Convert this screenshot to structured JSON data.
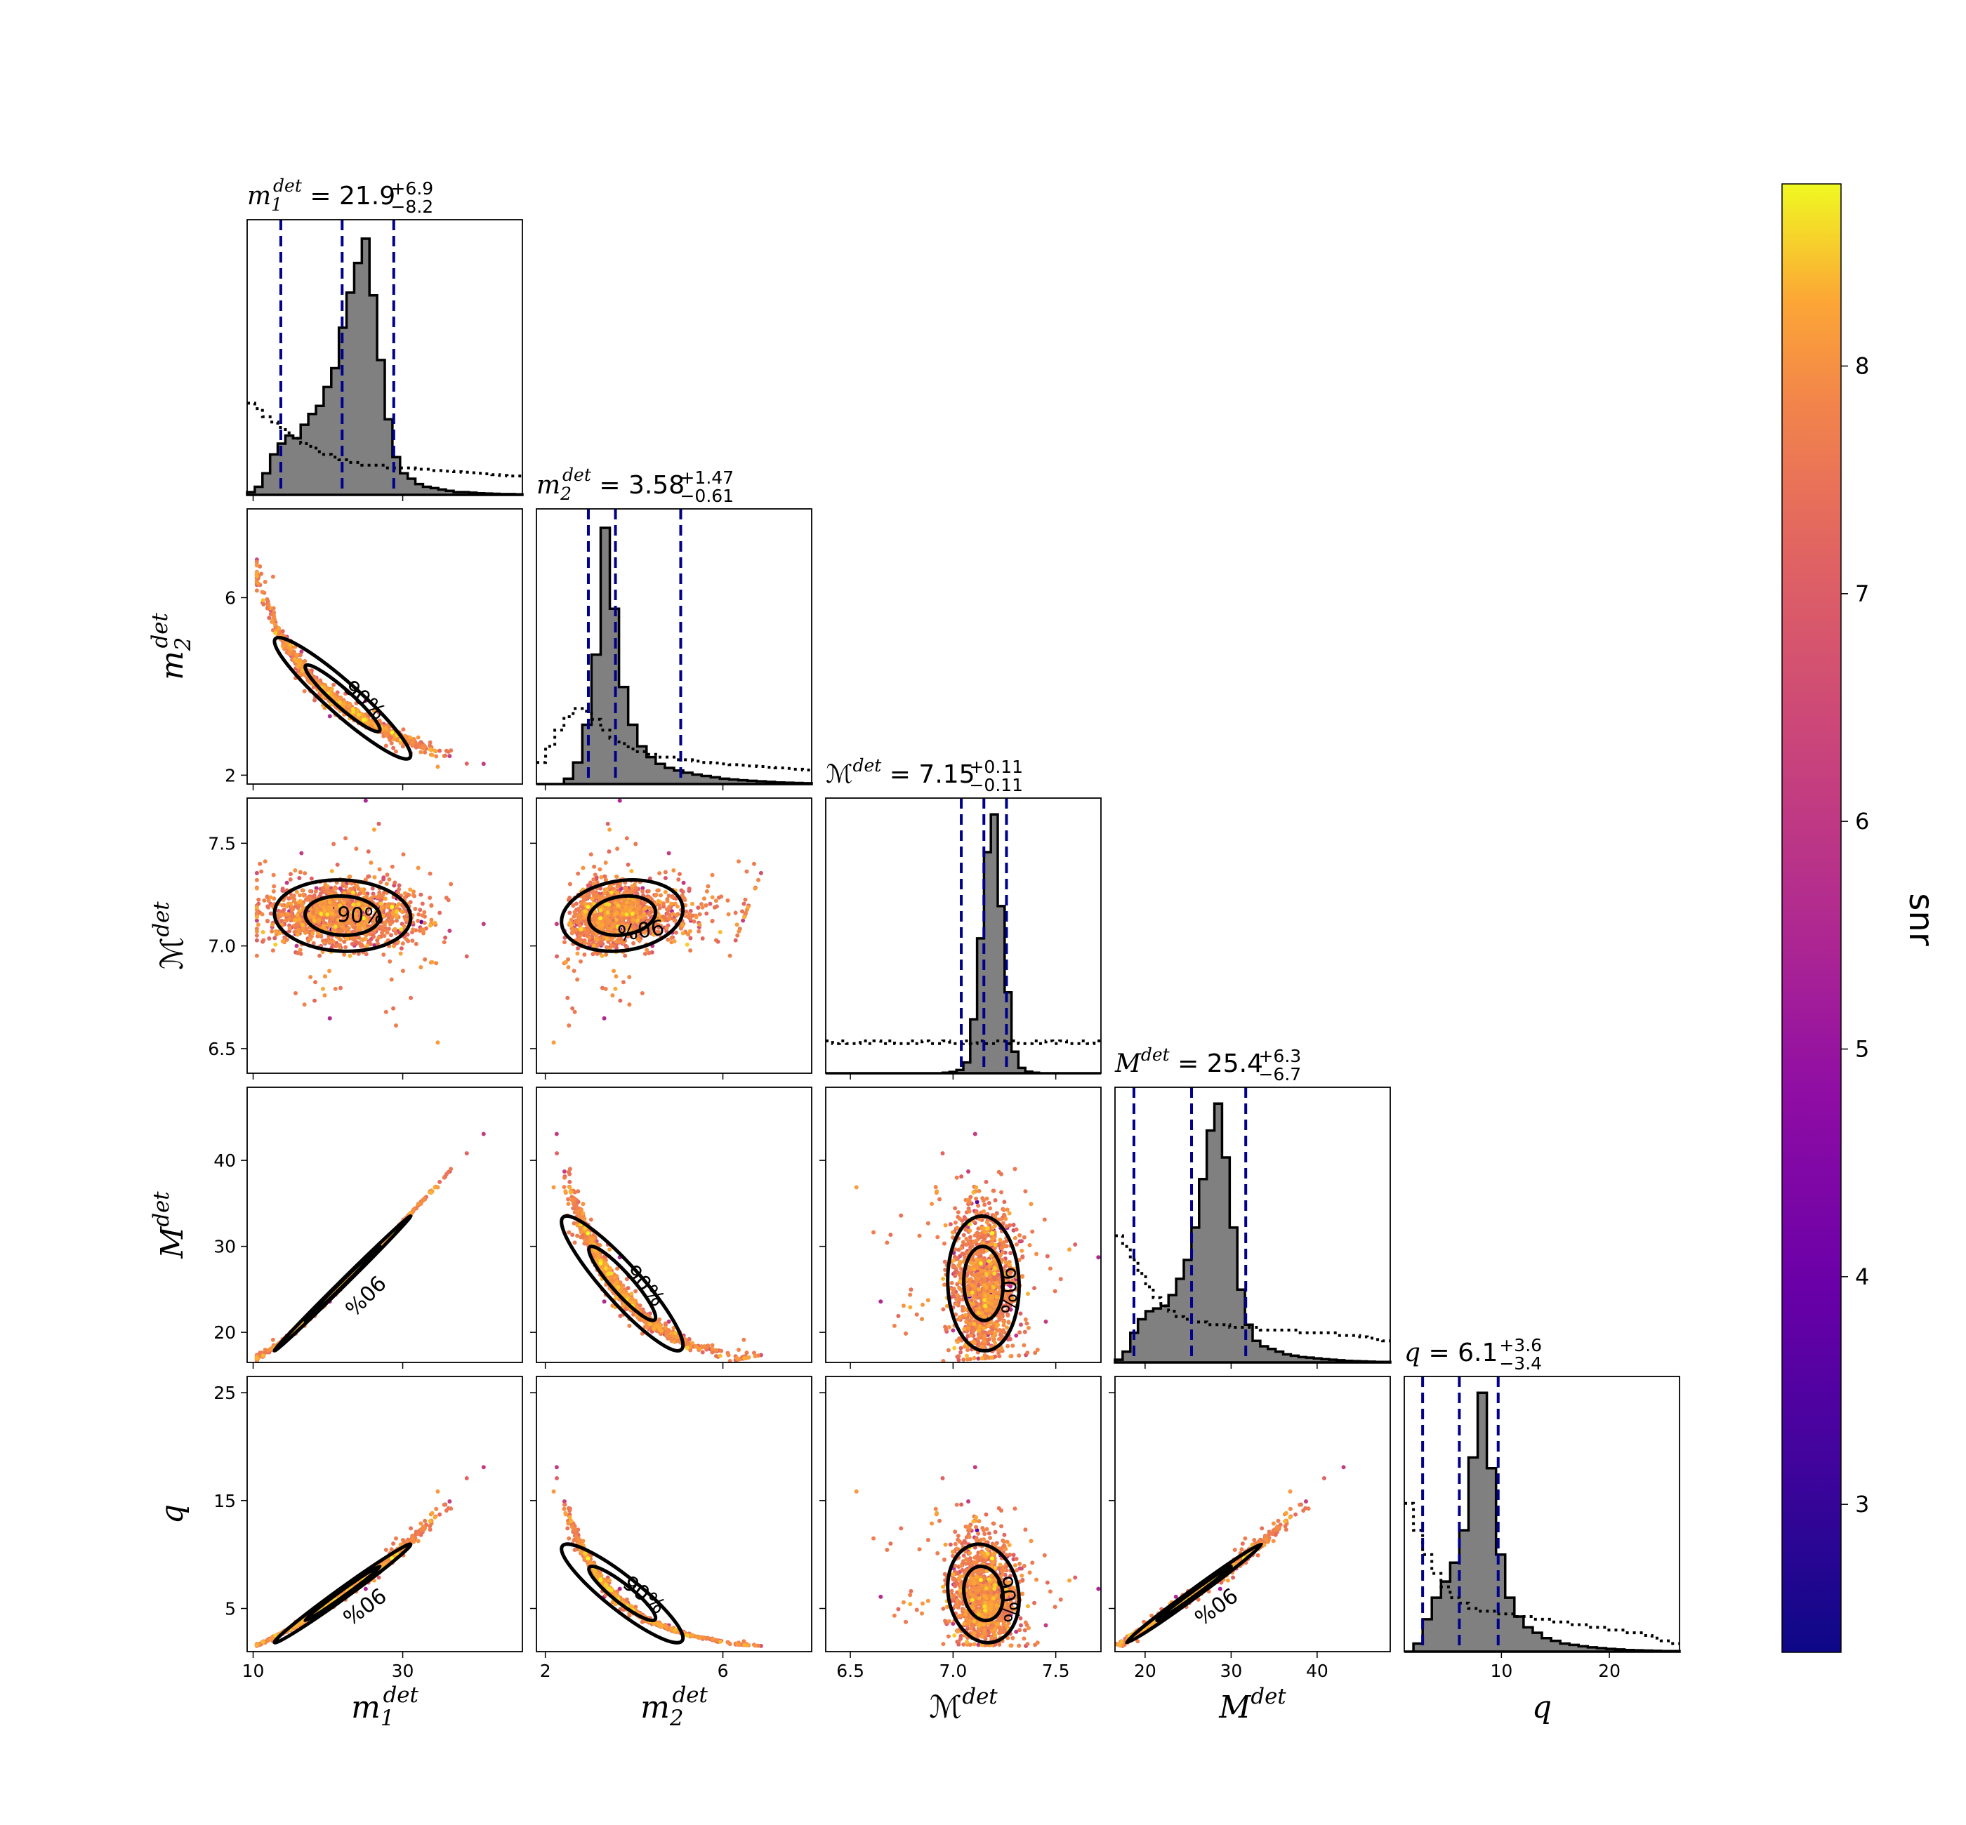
{
  "chart_data": {
    "type": "scatter",
    "parameters": [
      {
        "key": "m1",
        "sym": "m",
        "sub": "1",
        "sup": "det",
        "script": false,
        "range": [
          9.2,
          46
        ],
        "ticks": [
          10,
          30
        ],
        "tick_labels": [
          "10",
          "30"
        ],
        "title": {
          "value": "21.9",
          "plus": "+6.9",
          "minus": "−8.2"
        },
        "median": 21.9,
        "lo": 13.7,
        "hi": 28.8,
        "post_hist": [
          0.01,
          0.03,
          0.08,
          0.15,
          0.19,
          0.22,
          0.21,
          0.26,
          0.3,
          0.33,
          0.4,
          0.47,
          0.62,
          0.75,
          0.86,
          0.95,
          0.74,
          0.5,
          0.28,
          0.14,
          0.08,
          0.06,
          0.04,
          0.03,
          0.025,
          0.02,
          0.015,
          0.01,
          0.01,
          0.008,
          0.006,
          0.005,
          0.004,
          0.003,
          0.003,
          0.002
        ],
        "prior_hist": [
          0.34,
          0.32,
          0.29,
          0.27,
          0.25,
          0.23,
          0.21,
          0.19,
          0.18,
          0.16,
          0.15,
          0.14,
          0.13,
          0.12,
          0.12,
          0.11,
          0.11,
          0.11,
          0.1,
          0.1,
          0.1,
          0.1,
          0.095,
          0.095,
          0.09,
          0.09,
          0.088,
          0.086,
          0.084,
          0.082,
          0.08,
          0.078,
          0.075,
          0.072,
          0.07,
          0.07
        ]
      },
      {
        "key": "m2",
        "sym": "m",
        "sub": "2",
        "sup": "det",
        "script": false,
        "range": [
          1.8,
          8.0
        ],
        "ticks": [
          2,
          6
        ],
        "tick_labels": [
          "2",
          "6"
        ],
        "title": {
          "value": "3.58",
          "plus": "+1.47",
          "minus": "−0.61"
        },
        "median": 3.58,
        "lo": 2.97,
        "hi": 5.05,
        "post_hist": [
          0,
          0,
          0,
          0.02,
          0.08,
          0.22,
          0.48,
          0.95,
          0.65,
          0.36,
          0.22,
          0.14,
          0.1,
          0.075,
          0.06,
          0.05,
          0.042,
          0.035,
          0.03,
          0.025,
          0.02,
          0.017,
          0.014,
          0.012,
          0.01,
          0.008,
          0.006,
          0.005,
          0.004,
          0.003
        ],
        "prior_hist": [
          0.08,
          0.14,
          0.2,
          0.25,
          0.28,
          0.27,
          0.24,
          0.2,
          0.17,
          0.15,
          0.13,
          0.12,
          0.11,
          0.1,
          0.1,
          0.09,
          0.09,
          0.085,
          0.08,
          0.078,
          0.075,
          0.072,
          0.07,
          0.067,
          0.065,
          0.062,
          0.06,
          0.058,
          0.055,
          0.052
        ]
      },
      {
        "key": "mc",
        "sym": "ℳ",
        "sub": "",
        "sup": "det",
        "script": true,
        "range": [
          6.38,
          7.72
        ],
        "ticks": [
          6.5,
          7.0,
          7.5
        ],
        "tick_labels": [
          "6.5",
          "7.0",
          "7.5"
        ],
        "yticks": [
          6.5,
          7.0,
          7.5
        ],
        "title": {
          "value": "7.15",
          "plus": "+0.11",
          "minus": "−0.11"
        },
        "median": 7.15,
        "lo": 7.04,
        "hi": 7.26,
        "post_hist": [
          0,
          0,
          0,
          0,
          0,
          0,
          0,
          0,
          0,
          0,
          0,
          0,
          0,
          0,
          0,
          0,
          0,
          0.002,
          0.005,
          0.012,
          0.04,
          0.2,
          0.5,
          0.82,
          0.96,
          0.62,
          0.3,
          0.08,
          0.02,
          0.006,
          0.002,
          0,
          0,
          0,
          0,
          0,
          0,
          0,
          0,
          0
        ],
        "prior_hist": [
          0.12,
          0.11,
          0.12,
          0.11,
          0.11,
          0.12,
          0.11,
          0.12,
          0.11,
          0.12,
          0.11,
          0.11,
          0.12,
          0.11,
          0.12,
          0.11,
          0.11,
          0.12,
          0.11,
          0.11,
          0.12,
          0.11,
          0.12,
          0.11,
          0.11,
          0.12,
          0.11,
          0.12,
          0.11,
          0.11,
          0.12,
          0.11,
          0.12,
          0.11,
          0.12,
          0.11,
          0.11,
          0.12,
          0.11,
          0.12
        ]
      },
      {
        "key": "M",
        "sym": "M",
        "sub": "",
        "sup": "det",
        "script": false,
        "range": [
          16.5,
          48.5
        ],
        "ticks": [
          20,
          30,
          40
        ],
        "tick_labels": [
          "20",
          "30",
          "40"
        ],
        "title": {
          "value": "25.4",
          "plus": "+6.3",
          "minus": "−6.7"
        },
        "median": 25.4,
        "lo": 18.7,
        "hi": 31.7,
        "post_hist": [
          0.01,
          0.04,
          0.11,
          0.16,
          0.19,
          0.2,
          0.21,
          0.25,
          0.31,
          0.38,
          0.5,
          0.68,
          0.86,
          0.96,
          0.76,
          0.5,
          0.27,
          0.14,
          0.08,
          0.06,
          0.05,
          0.04,
          0.03,
          0.025,
          0.02,
          0.018,
          0.015,
          0.012,
          0.01,
          0.008,
          0.006,
          0.005,
          0.004,
          0.003,
          0.002,
          0.002
        ],
        "prior_hist": [
          0.47,
          0.43,
          0.38,
          0.33,
          0.28,
          0.24,
          0.21,
          0.19,
          0.17,
          0.16,
          0.15,
          0.15,
          0.14,
          0.14,
          0.14,
          0.13,
          0.13,
          0.13,
          0.13,
          0.12,
          0.12,
          0.12,
          0.12,
          0.12,
          0.11,
          0.11,
          0.11,
          0.11,
          0.11,
          0.1,
          0.1,
          0.1,
          0.095,
          0.09,
          0.085,
          0.08
        ]
      },
      {
        "key": "q",
        "sym": "q",
        "sub": "",
        "sup": "",
        "script": false,
        "range": [
          1.0,
          26.5
        ],
        "ticks": [
          10,
          20
        ],
        "tick_labels": [
          "10",
          "20"
        ],
        "yticks": [
          5,
          15,
          25
        ],
        "title": {
          "value": "6.1",
          "plus": "+3.6",
          "minus": "−3.4"
        },
        "median": 6.1,
        "lo": 2.7,
        "hi": 9.7,
        "post_hist": [
          0,
          0.03,
          0.12,
          0.2,
          0.26,
          0.33,
          0.45,
          0.72,
          0.96,
          0.68,
          0.36,
          0.2,
          0.13,
          0.09,
          0.07,
          0.05,
          0.04,
          0.03,
          0.025,
          0.02,
          0.016,
          0.013,
          0.01,
          0.008,
          0.006,
          0.005,
          0.004,
          0.003,
          0.002,
          0.002
        ],
        "prior_hist": [
          0.55,
          0.45,
          0.36,
          0.29,
          0.24,
          0.2,
          0.18,
          0.16,
          0.15,
          0.15,
          0.14,
          0.14,
          0.13,
          0.13,
          0.12,
          0.12,
          0.11,
          0.11,
          0.1,
          0.1,
          0.09,
          0.09,
          0.08,
          0.08,
          0.07,
          0.07,
          0.06,
          0.05,
          0.04,
          0.03
        ]
      }
    ],
    "y_tick_labels": {
      "m2": {
        "ticks": [
          2,
          6
        ],
        "labels": [
          "2",
          "6"
        ]
      },
      "mc": {
        "ticks": [
          6.5,
          7.0,
          7.5
        ],
        "labels": [
          "6.5",
          "7.0",
          "7.5"
        ]
      },
      "M": {
        "ticks": [
          20,
          30,
          40
        ],
        "labels": [
          "20",
          "30",
          "40"
        ]
      },
      "q": {
        "ticks": [
          5,
          15,
          25
        ],
        "labels": [
          "5",
          "15",
          "25"
        ]
      }
    },
    "contour_label": "90%",
    "colorbar": {
      "label": "snr",
      "range": [
        2.35,
        8.8
      ],
      "ticks": [
        3,
        4,
        5,
        6,
        7,
        8
      ],
      "tick_labels": [
        "3",
        "4",
        "5",
        "6",
        "7",
        "8"
      ],
      "colormap": "plasma"
    },
    "samples": {
      "mc_center": 7.15,
      "mc_sd": 0.075,
      "m1_center": 21.9,
      "m1_sd": 5.0
    }
  },
  "colors": {
    "hist_fill": "#808080",
    "hist_edge": "#000000",
    "quantile_line": "#00008b",
    "contour": "#000000",
    "point_high_snr": "#fbb32f"
  }
}
